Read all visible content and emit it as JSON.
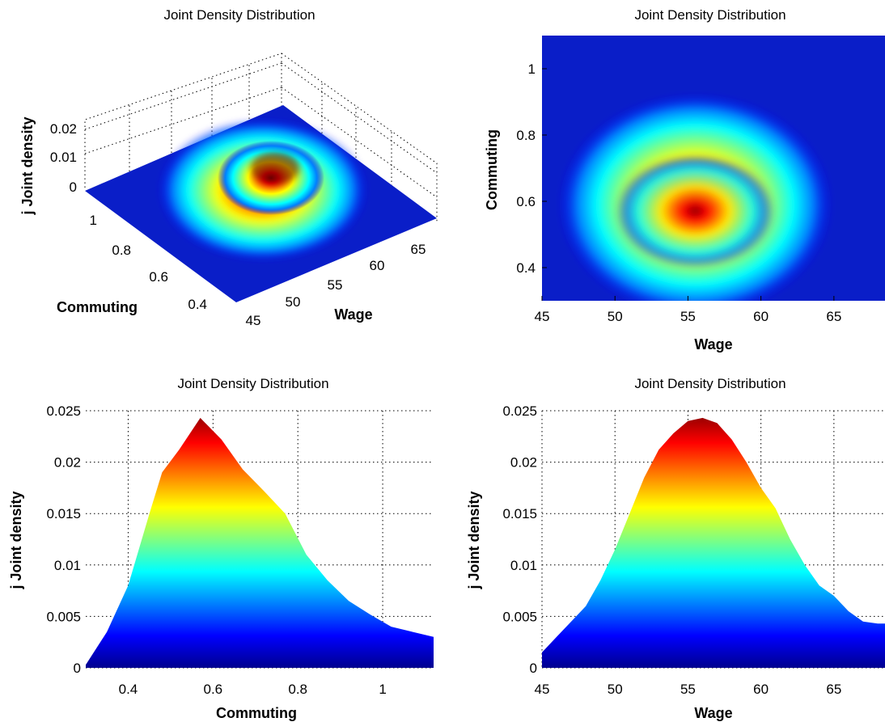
{
  "figure_title": "Joint Density Distribution",
  "colormap": [
    "#00008f",
    "#0000ff",
    "#0080ff",
    "#00ffff",
    "#80ff80",
    "#ffff00",
    "#ff8000",
    "#ff0000",
    "#800000"
  ],
  "chart_data": [
    {
      "type": "surface3d",
      "title": "Joint Density Distribution",
      "xlabel": "Wage",
      "ylabel": "Commuting",
      "zlabel": "j Joint density",
      "xlim": [
        45,
        68
      ],
      "ylim": [
        0.3,
        1.1
      ],
      "zlim": [
        0,
        0.025
      ],
      "xticks": [
        "45",
        "50",
        "55",
        "60",
        "65"
      ],
      "yticks": [
        "0.4",
        "0.6",
        "0.8",
        "1"
      ],
      "zticks": [
        "0",
        "0.01",
        "0.02"
      ],
      "peak": {
        "wage": 55.5,
        "commuting": 0.57,
        "density": 0.0243
      },
      "grid": true
    },
    {
      "type": "heatmap",
      "title": "Joint Density Distribution",
      "xlabel": "Wage",
      "ylabel": "Commuting",
      "xlim": [
        45,
        68.5
      ],
      "ylim": [
        0.3,
        1.1
      ],
      "xticks": [
        "45",
        "50",
        "55",
        "60",
        "65"
      ],
      "yticks": [
        "0.4",
        "0.6",
        "0.8",
        "1"
      ],
      "peak": {
        "wage": 55.5,
        "commuting": 0.57,
        "density": 0.0243
      }
    },
    {
      "type": "area",
      "title": "Joint Density Distribution",
      "xlabel": "Commuting",
      "ylabel": "j Joint density",
      "xlim": [
        0.3,
        1.12
      ],
      "ylim": [
        0,
        0.025
      ],
      "xticks": [
        "0.4",
        "0.6",
        "0.8",
        "1"
      ],
      "yticks": [
        "0",
        "0.005",
        "0.01",
        "0.015",
        "0.02",
        "0.025"
      ],
      "grid": true,
      "x": [
        0.3,
        0.35,
        0.4,
        0.45,
        0.48,
        0.52,
        0.57,
        0.62,
        0.67,
        0.72,
        0.77,
        0.82,
        0.87,
        0.92,
        0.97,
        1.02,
        1.07,
        1.12
      ],
      "y": [
        0.0003,
        0.0035,
        0.008,
        0.015,
        0.019,
        0.0212,
        0.0243,
        0.0222,
        0.0193,
        0.0172,
        0.015,
        0.011,
        0.0085,
        0.0065,
        0.0052,
        0.004,
        0.0035,
        0.003
      ]
    },
    {
      "type": "area",
      "title": "Joint Density Distribution",
      "xlabel": "Wage",
      "ylabel": "j Joint density",
      "xlim": [
        45,
        68.5
      ],
      "ylim": [
        0,
        0.025
      ],
      "xticks": [
        "45",
        "50",
        "55",
        "60",
        "65"
      ],
      "yticks": [
        "0",
        "0.005",
        "0.01",
        "0.015",
        "0.02",
        "0.025"
      ],
      "grid": true,
      "x": [
        45,
        46,
        47,
        48,
        49,
        50,
        51,
        52,
        53,
        54,
        55,
        56,
        57,
        58,
        59,
        60,
        61,
        62,
        63,
        64,
        65,
        66,
        67,
        68,
        68.5
      ],
      "y": [
        0.0015,
        0.003,
        0.0045,
        0.006,
        0.0085,
        0.0115,
        0.015,
        0.0185,
        0.0212,
        0.0228,
        0.024,
        0.0243,
        0.0238,
        0.0222,
        0.02,
        0.0175,
        0.0155,
        0.0125,
        0.01,
        0.008,
        0.007,
        0.0055,
        0.0045,
        0.0043,
        0.0043
      ]
    }
  ]
}
